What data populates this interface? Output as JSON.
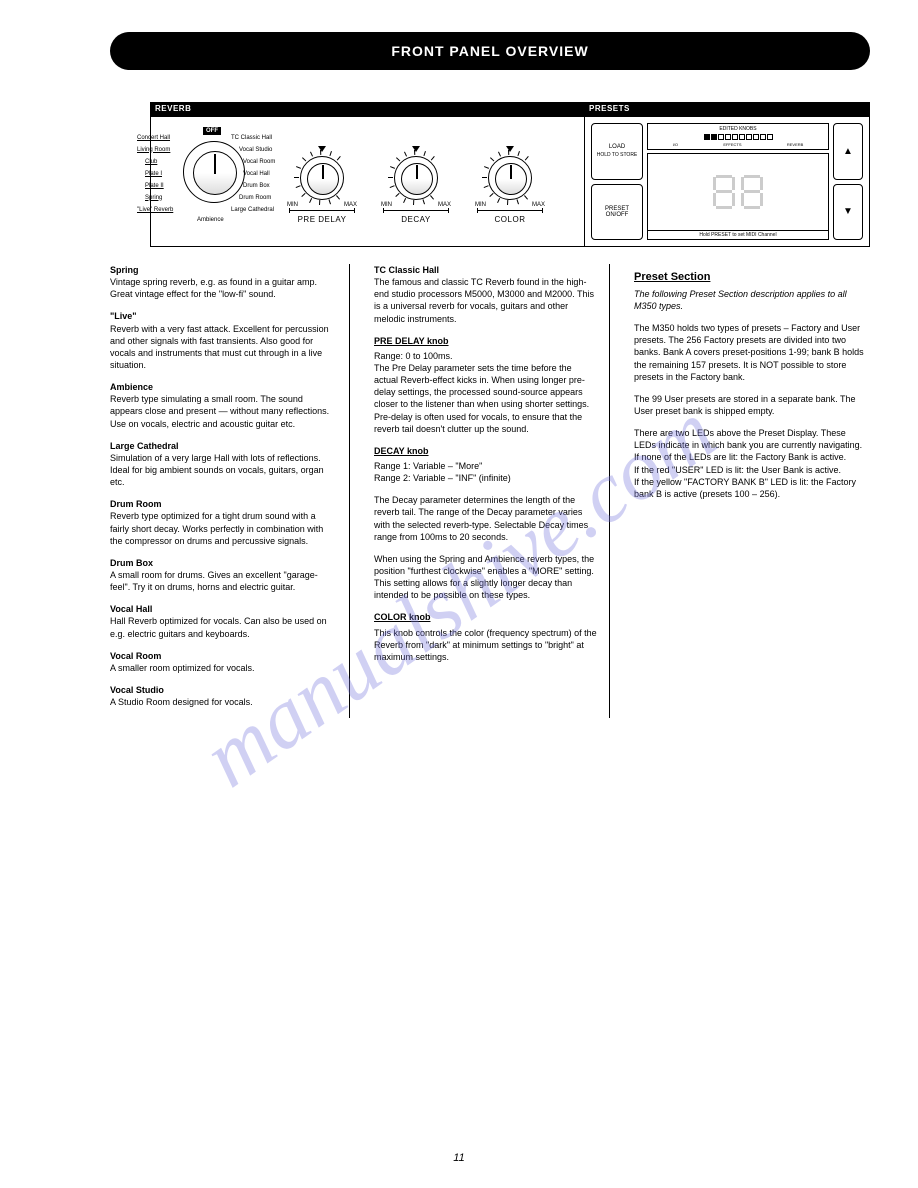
{
  "watermark": "manualshive.com",
  "header_title": "FRONT PANEL OVERVIEW",
  "page_number": "11",
  "diagram": {
    "reverb": {
      "title": "REVERB",
      "off_label": "OFF",
      "selector_labels_left": [
        "Concert Hall",
        "Living Room",
        "Club",
        "Plate I",
        "Plate II",
        "Spring",
        "\"Live\" Reverb"
      ],
      "selector_labels_right": [
        "TC Classic Hall",
        "Vocal Studio",
        "Vocal Room",
        "Vocal Hall",
        "Drum Box",
        "Drum Room",
        "Large Cathedral"
      ],
      "selector_bottom": "Ambience",
      "knobs": [
        {
          "label": "PRE DELAY",
          "min": "MIN",
          "max": "MAX"
        },
        {
          "label": "DECAY",
          "min": "MIN",
          "max": "MAX"
        },
        {
          "label": "COLOR",
          "min": "MIN",
          "max": "MAX"
        }
      ]
    },
    "presets": {
      "title": "PRESETS",
      "load_btn": "LOAD",
      "load_sub": "HOLD TO STORE",
      "preset_btn": "PRESET ON/OFF",
      "edited_title": "EDITED KNOBS",
      "edited_labels": [
        "I/O",
        "EFFECTS",
        "REVERB"
      ],
      "midi_note": "Hold PRESET to set MIDI Channel",
      "up": "▲",
      "down": "▼"
    }
  },
  "col1": {
    "p1_head": "Spring",
    "p1": "Vintage spring reverb, e.g. as found in a guitar amp. Great vintage effect for the \"low-fi\" sound.",
    "p2_head": "\"Live\"",
    "p2": "Reverb with a very fast attack. Excellent for percussion and other signals with fast transients. Also good for vocals and instruments that must cut through in a live situation.",
    "p3_head": "Ambience",
    "p3": "Reverb type simulating a small room. The sound appears close and present — without many reflections. Use on vocals, electric and acoustic guitar etc.",
    "p4_head": "Large Cathedral",
    "p4": "Simulation of a very large Hall with lots of reflections. Ideal for big ambient sounds on vocals, guitars, organ etc.",
    "p5_head": "Drum Room",
    "p5": "Reverb type optimized for a tight drum sound with a fairly short decay. Works perfectly in combination with the compressor on drums and percussive signals.",
    "p6_head": "Drum Box",
    "p6": "A small room for drums. Gives an excellent \"garage-feel\". Try it on drums, horns and electric guitar.",
    "p7_head": "Vocal Hall",
    "p7": "Hall Reverb optimized for vocals. Can also be used on e.g. electric guitars and keyboards.",
    "p8_head": "Vocal Room",
    "p8": "A smaller room optimized for vocals.",
    "p9_head": "Vocal Studio",
    "p9": "A Studio Room designed for vocals."
  },
  "col2": {
    "p1_head": "TC Classic Hall",
    "p1": "The famous and classic TC Reverb found in the high-end studio processors M5000, M3000 and M2000. This is a universal reverb for vocals, guitars and other melodic instruments.",
    "sec2": "PRE DELAY knob",
    "p2a": "Range: 0 to 100ms.",
    "p2b": "The Pre Delay parameter sets the time before the actual Reverb-effect kicks in. When using longer pre-delay settings, the processed sound-source appears closer to the listener than when using shorter settings. Pre-delay is often used for vocals, to ensure that the reverb tail doesn't clutter up the sound.",
    "sec3": "DECAY knob",
    "p3a": "Range 1: Variable – \"More\"",
    "p3b": "Range 2: Variable – \"INF\" (infinite)",
    "p3c": "The Decay parameter determines the length of the reverb tail. The range of the Decay parameter varies with the selected reverb-type. Selectable Decay times range from 100ms to 20 seconds.",
    "p3d": "When using the Spring and Ambience reverb types, the position \"furthest clockwise\" enables a \"MORE\" setting. This setting allows for a slightly longer decay than intended to be possible on these types.",
    "sec4": "COLOR knob",
    "p4": "This knob controls the color (frequency spectrum) of the Reverb from \"dark\" at minimum settings to \"bright\" at maximum settings."
  },
  "col3": {
    "head": "Preset Section",
    "p1": "The following Preset Section description applies to all M350 types.",
    "p2": "The M350 holds two types of presets – Factory and User presets. The 256 Factory presets are divided into two banks. Bank A covers preset-positions 1-99; bank B holds the remaining 157 presets. It is NOT possible to store presets in the Factory bank.",
    "p3": "The 99 User presets are stored in a separate bank. The User preset bank is shipped empty.",
    "p4a": "There are two LEDs above the Preset Display. These LEDs indicate in which bank you are currently navigating.",
    "p4b": "If none of the LEDs are lit: the Factory Bank is active.",
    "p4c": "If the red \"USER\" LED is lit: the User Bank is active.",
    "p4d": "If the yellow \"FACTORY BANK B\" LED is lit: the Factory bank B is active (presets 100 – 256)."
  }
}
